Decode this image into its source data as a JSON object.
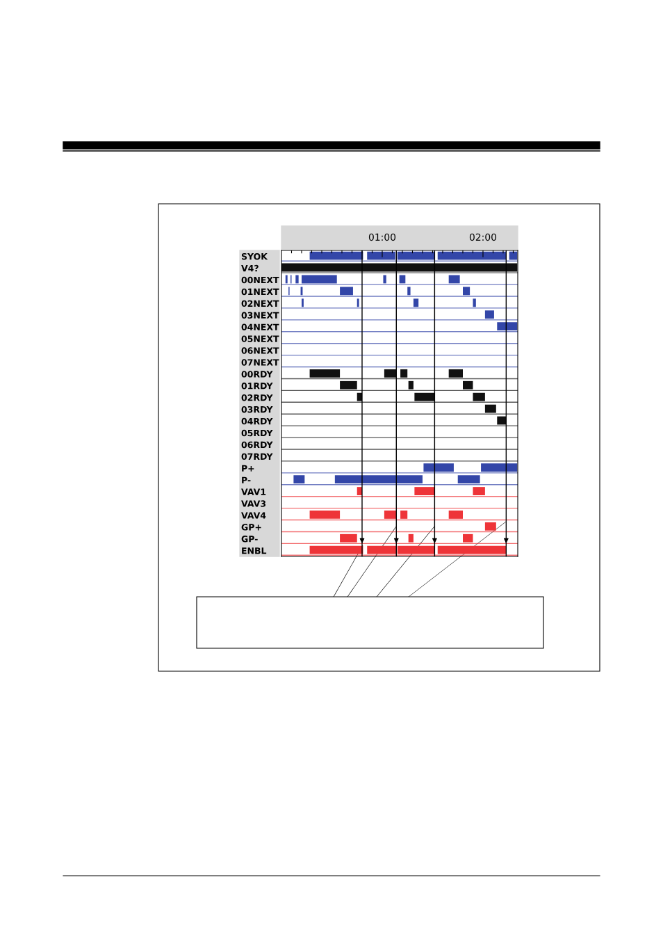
{
  "chart_data": {
    "type": "bar",
    "orientation": "horizontal",
    "categories": [
      "SYOK",
      "V4?",
      "00NEXT",
      "01NEXT",
      "02NEXT",
      "03NEXT",
      "04NEXT",
      "05NEXT",
      "06NEXT",
      "07NEXT",
      "00RDY",
      "01RDY",
      "02RDY",
      "03RDY",
      "04RDY",
      "05RDY",
      "06RDY",
      "07RDY",
      "P+",
      "P-",
      "VAV1",
      "VAV3",
      "VAV4",
      "GP+",
      "GP-",
      "ENBL"
    ],
    "colors": [
      "#3346a8",
      "#111111",
      "#3346a8",
      "#3346a8",
      "#3346a8",
      "#3346a8",
      "#3346a8",
      "#3346a8",
      "#3346a8",
      "#3346a8",
      "#111111",
      "#111111",
      "#111111",
      "#111111",
      "#111111",
      "#111111",
      "#111111",
      "#111111",
      "#3346a8",
      "#3346a8",
      "#ee3438",
      "#ee3438",
      "#ee3438",
      "#ee3438",
      "#ee3438",
      "#ee3438"
    ],
    "series": [
      {
        "colors": [
          "#3346a8",
          "#111111",
          "#3346a8",
          "#3346a8",
          "#3346a8",
          "#3346a8",
          "#3346a8",
          null,
          null,
          null,
          "#111111",
          "#111111",
          "#111111",
          "#111111",
          "#111111",
          null,
          null,
          null,
          "#3346a8",
          "#3346a8",
          "#ee3438",
          null,
          "#ee3438",
          "#ee3438",
          "#ee3438",
          "#ee3438"
        ],
        "base": [
          0.28,
          0,
          0.04,
          0.07,
          0.2,
          2.02,
          2.14,
          null,
          null,
          null,
          0.28,
          0.58,
          0.75,
          2.02,
          2.14,
          null,
          null,
          null,
          1.41,
          0.12,
          0.75,
          null,
          0.28,
          2.02,
          0.58,
          0.28
        ],
        "values": [
          0.53,
          2.34,
          0.02,
          0.01,
          0.02,
          0.09,
          0.2,
          null,
          null,
          null,
          0.3,
          0.17,
          0.05,
          0.11,
          0.09,
          null,
          null,
          null,
          0.3,
          0.11,
          0.05,
          null,
          0.3,
          0.11,
          0.17,
          0.53
        ]
      },
      {
        "colors": [
          "#3346a8",
          null,
          "#3346a8",
          "#3346a8",
          "#3346a8",
          null,
          null,
          null,
          null,
          null,
          "#111111",
          "#111111",
          "#111111",
          null,
          null,
          null,
          null,
          null,
          "#3346a8",
          "#3346a8",
          "#ee3438",
          null,
          "#ee3438",
          null,
          "#ee3438",
          "#ee3438"
        ],
        "base": [
          0.85,
          null,
          0.09,
          0.19,
          0.75,
          null,
          null,
          null,
          null,
          null,
          1.02,
          1.26,
          1.32,
          null,
          null,
          null,
          null,
          null,
          1.98,
          0.53,
          1.32,
          null,
          1.02,
          null,
          1.26,
          0.85
        ],
        "values": [
          0.28,
          null,
          0.01,
          0.02,
          0.02,
          null,
          null,
          null,
          null,
          null,
          0.12,
          0.05,
          0.2,
          null,
          null,
          null,
          null,
          null,
          0.36,
          0.87,
          0.2,
          null,
          0.12,
          null,
          0.05,
          0.29
        ]
      },
      {
        "colors": [
          "#3346a8",
          null,
          "#3346a8",
          "#3346a8",
          "#3346a8",
          null,
          null,
          null,
          null,
          null,
          "#111111",
          "#111111",
          "#111111",
          null,
          null,
          null,
          null,
          null,
          null,
          "#3346a8",
          "#ee3438",
          null,
          "#ee3438",
          null,
          "#ee3438",
          "#ee3438"
        ],
        "base": [
          1.15,
          null,
          0.14,
          0.58,
          1.31,
          null,
          null,
          null,
          null,
          null,
          1.18,
          1.8,
          1.9,
          null,
          null,
          null,
          null,
          null,
          null,
          1.75,
          1.9,
          null,
          1.18,
          null,
          1.8,
          1.15
        ],
        "values": [
          0.37,
          null,
          0.03,
          0.13,
          0.05,
          null,
          null,
          null,
          null,
          null,
          0.07,
          0.1,
          0.12,
          null,
          null,
          null,
          null,
          null,
          null,
          0.22,
          0.12,
          null,
          0.07,
          null,
          0.1,
          0.37
        ]
      },
      {
        "colors": [
          "#3346a8",
          null,
          "#3346a8",
          "#3346a8",
          "#3346a8",
          null,
          null,
          null,
          null,
          null,
          "#111111",
          null,
          null,
          null,
          null,
          null,
          null,
          null,
          null,
          null,
          null,
          null,
          "#ee3438",
          null,
          null,
          "#ee3438"
        ],
        "base": [
          1.55,
          null,
          0.2,
          1.25,
          1.9,
          null,
          null,
          null,
          null,
          null,
          1.66,
          null,
          null,
          null,
          null,
          null,
          null,
          null,
          null,
          null,
          null,
          null,
          1.66,
          null,
          null,
          1.55
        ],
        "values": [
          0.68,
          null,
          0.35,
          0.03,
          0.03,
          null,
          null,
          null,
          null,
          null,
          0.14,
          null,
          null,
          null,
          null,
          null,
          null,
          null,
          null,
          null,
          null,
          null,
          0.14,
          null,
          null,
          0.68
        ]
      },
      {
        "color": "#3346a8",
        "base": [
          2.26,
          null,
          1.01,
          1.8,
          null,
          null,
          null,
          null,
          null,
          null,
          null,
          null,
          null,
          null,
          null,
          null,
          null,
          null,
          null,
          null,
          null,
          null,
          null,
          null,
          null,
          null
        ],
        "values": [
          0.08,
          null,
          0.03,
          0.07,
          null,
          null,
          null,
          null,
          null,
          null,
          null,
          null,
          null,
          null,
          null,
          null,
          null,
          null,
          null,
          null,
          null,
          null,
          null,
          null,
          null,
          null
        ]
      },
      {
        "color": "#3346a8",
        "base": [
          null,
          null,
          1.17,
          null,
          null,
          null,
          null,
          null,
          null,
          null,
          null,
          null,
          null,
          null,
          null,
          null,
          null,
          null,
          null,
          null,
          null,
          null,
          null,
          null,
          null,
          null
        ],
        "values": [
          null,
          null,
          0.06,
          null,
          null,
          null,
          null,
          null,
          null,
          null,
          null,
          null,
          null,
          null,
          null,
          null,
          null,
          null,
          null,
          null,
          null,
          null,
          null,
          null,
          null,
          null
        ]
      },
      {
        "color": "#3346a8",
        "base": [
          null,
          null,
          1.66,
          null,
          null,
          null,
          null,
          null,
          null,
          null,
          null,
          null,
          null,
          null,
          null,
          null,
          null,
          null,
          null,
          null,
          null,
          null,
          null,
          null,
          null,
          null
        ],
        "values": [
          null,
          null,
          0.11,
          null,
          null,
          null,
          null,
          null,
          null,
          null,
          null,
          null,
          null,
          null,
          null,
          null,
          null,
          null,
          null,
          null,
          null,
          null,
          null,
          null,
          null,
          null
        ]
      }
    ],
    "xlim": [
      0,
      2.345
    ],
    "xticks": [
      {
        "value": 0.1,
        "label": null
      },
      {
        "value": 0.2,
        "label": null
      },
      {
        "value": 0.3,
        "label": null
      },
      {
        "value": 0.4,
        "label": null
      },
      {
        "value": 0.5,
        "label": null
      },
      {
        "value": 0.6,
        "label": null
      },
      {
        "value": 0.7,
        "label": null
      },
      {
        "value": 0.8,
        "label": null
      },
      {
        "value": 0.9,
        "label": null
      },
      {
        "value": 1,
        "label": "01:00"
      },
      {
        "value": 1.1,
        "label": null
      },
      {
        "value": 1.2,
        "label": null
      },
      {
        "value": 1.3,
        "label": null
      },
      {
        "value": 1.4,
        "label": null
      },
      {
        "value": 1.5,
        "label": null
      },
      {
        "value": 1.6,
        "label": null
      },
      {
        "value": 1.7,
        "label": null
      },
      {
        "value": 1.8,
        "label": null
      },
      {
        "value": 1.9,
        "label": null
      },
      {
        "value": 2,
        "label": "02:00"
      },
      {
        "value": 2.1,
        "label": null
      },
      {
        "value": 2.2,
        "label": null
      },
      {
        "value": 2.3,
        "label": null
      }
    ],
    "ref_lines": [
      {
        "axis": "x",
        "value": 0.8,
        "color": "#000000"
      },
      {
        "axis": "x",
        "value": 1.14,
        "color": "#000000"
      },
      {
        "axis": "x",
        "value": 1.52,
        "color": "#000000"
      },
      {
        "axis": "x",
        "value": 2.23,
        "color": "#000000"
      }
    ]
  }
}
